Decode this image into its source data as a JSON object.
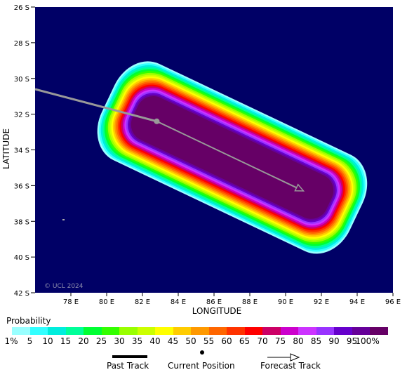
{
  "map": {
    "lat_ticks": [
      "26 S",
      "28 S",
      "30 S",
      "32 S",
      "34 S",
      "36 S",
      "38 S",
      "40 S",
      "42 S"
    ],
    "lon_ticks": [
      "78 E",
      "80 E",
      "82 E",
      "84 E",
      "86 E",
      "88 E",
      "90 E",
      "92 E",
      "94 E",
      "96 E"
    ],
    "ylabel": "LATITUDE",
    "xlabel": "LONGITUDE",
    "watermark": "© UCL 2024",
    "background_color": "#000066"
  },
  "track": {
    "past": [
      [
        76.0,
        30.6
      ],
      [
        82.8,
        32.4
      ]
    ],
    "current": [
      82.8,
      32.4
    ],
    "forecast": [
      [
        82.8,
        32.4
      ],
      [
        91.0,
        36.3
      ]
    ]
  },
  "legend": {
    "title": "Probability",
    "labels": [
      "1%",
      "5",
      "10",
      "15",
      "20",
      "25",
      "30",
      "35",
      "40",
      "45",
      "50",
      "55",
      "60",
      "65",
      "70",
      "75",
      "80",
      "85",
      "90",
      "95",
      "100%"
    ],
    "colors": [
      "#99ffff",
      "#33ffff",
      "#00eedd",
      "#00ff99",
      "#00ff33",
      "#33ff00",
      "#99ff00",
      "#ccff00",
      "#ffff00",
      "#ffcc00",
      "#ff9900",
      "#ff6600",
      "#ff3300",
      "#ff0000",
      "#cc0066",
      "#cc00cc",
      "#cc33ff",
      "#9933ff",
      "#6600cc",
      "#660099",
      "#660066"
    ],
    "past_track": "Past Track",
    "current_position": "Current Position",
    "forecast_track": "Forecast Track"
  }
}
